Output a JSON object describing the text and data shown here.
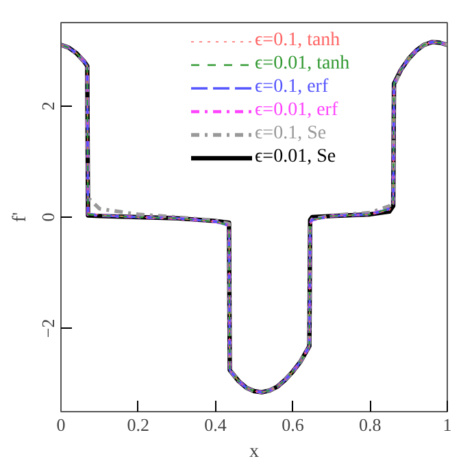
{
  "chart_data": {
    "type": "line",
    "xlabel": "x",
    "ylabel": "f'",
    "xlim": [
      0,
      1
    ],
    "ylim": [
      -3.5,
      3.5
    ],
    "xticks": [
      0,
      0.2,
      0.4,
      0.6,
      0.8,
      1
    ],
    "yticks": [
      -2,
      0,
      2
    ],
    "grid": false,
    "legend": "top",
    "marker": "none",
    "x": [
      0,
      0.02,
      0.04,
      0.06,
      0.068,
      0.07,
      0.1,
      0.2,
      0.3,
      0.4,
      0.435,
      0.437,
      0.44,
      0.46,
      0.48,
      0.5,
      0.52,
      0.54,
      0.56,
      0.58,
      0.6,
      0.62,
      0.643,
      0.645,
      0.65,
      0.7,
      0.8,
      0.85,
      0.86,
      0.862,
      0.88,
      0.9,
      0.92,
      0.94,
      0.96,
      0.98,
      1
    ],
    "series": [
      {
        "name": "ϵ=0.1, tanh",
        "color": "#ff6666",
        "line_style": "dotted",
        "values": [
          3.1,
          3.05,
          2.95,
          2.8,
          2.72,
          0.08,
          0.04,
          0.0,
          -0.03,
          -0.08,
          -0.15,
          -2.7,
          -2.78,
          -2.95,
          -3.07,
          -3.13,
          -3.15,
          -3.12,
          -3.05,
          -2.93,
          -2.78,
          -2.6,
          -2.32,
          -0.15,
          -0.06,
          0.02,
          0.05,
          0.12,
          0.22,
          2.4,
          2.65,
          2.85,
          3.0,
          3.1,
          3.15,
          3.14,
          3.1
        ]
      },
      {
        "name": "ϵ=0.01, tanh",
        "color": "#339933",
        "line_style": "dashed",
        "values": [
          3.1,
          3.05,
          2.95,
          2.8,
          2.72,
          0.05,
          0.03,
          0.0,
          -0.02,
          -0.08,
          -0.15,
          -2.75,
          -2.78,
          -2.95,
          -3.07,
          -3.13,
          -3.15,
          -3.12,
          -3.05,
          -2.93,
          -2.78,
          -2.6,
          -2.32,
          -0.12,
          -0.05,
          0.02,
          0.05,
          0.15,
          0.25,
          2.4,
          2.65,
          2.85,
          3.0,
          3.1,
          3.15,
          3.14,
          3.1
        ]
      },
      {
        "name": "ϵ=0.1, erf",
        "color": "#5555ff",
        "line_style": "longdash",
        "values": [
          3.1,
          3.05,
          2.95,
          2.8,
          2.72,
          0.06,
          0.03,
          0.0,
          -0.02,
          -0.08,
          -0.15,
          -2.75,
          -2.78,
          -2.95,
          -3.07,
          -3.13,
          -3.15,
          -3.12,
          -3.05,
          -2.93,
          -2.78,
          -2.6,
          -2.32,
          -0.12,
          -0.05,
          0.02,
          0.05,
          0.15,
          0.25,
          2.4,
          2.65,
          2.85,
          3.0,
          3.1,
          3.15,
          3.14,
          3.1
        ]
      },
      {
        "name": "ϵ=0.01, erf",
        "color": "#ff44ff",
        "line_style": "dashdot",
        "values": [
          3.1,
          3.05,
          2.95,
          2.8,
          2.72,
          0.05,
          0.03,
          0.0,
          -0.02,
          -0.08,
          -0.15,
          -2.75,
          -2.78,
          -2.95,
          -3.07,
          -3.13,
          -3.15,
          -3.12,
          -3.05,
          -2.93,
          -2.78,
          -2.6,
          -2.32,
          -0.12,
          -0.05,
          0.02,
          0.05,
          0.15,
          0.25,
          2.4,
          2.65,
          2.85,
          3.0,
          3.1,
          3.15,
          3.14,
          3.1
        ]
      },
      {
        "name": "ϵ=0.1, Se",
        "color": "#999999",
        "line_style": "dashdot",
        "values": [
          3.1,
          3.05,
          2.95,
          2.8,
          2.7,
          0.35,
          0.15,
          0.05,
          0.0,
          -0.06,
          -0.12,
          -2.7,
          -2.78,
          -2.95,
          -3.07,
          -3.13,
          -3.15,
          -3.12,
          -3.05,
          -2.93,
          -2.78,
          -2.6,
          -2.32,
          -0.1,
          -0.04,
          0.03,
          0.08,
          0.2,
          0.3,
          2.35,
          2.65,
          2.85,
          3.0,
          3.1,
          3.15,
          3.14,
          3.1
        ]
      },
      {
        "name": "ϵ=0.01, Se",
        "color": "#000000",
        "line_style": "solid",
        "values": [
          3.1,
          3.05,
          2.95,
          2.8,
          2.72,
          0.03,
          0.02,
          0.0,
          -0.02,
          -0.07,
          -0.1,
          -2.75,
          -2.78,
          -2.95,
          -3.07,
          -3.13,
          -3.15,
          -3.12,
          -3.05,
          -2.93,
          -2.78,
          -2.6,
          -2.32,
          -0.05,
          0.0,
          0.02,
          0.05,
          0.1,
          0.2,
          2.4,
          2.65,
          2.85,
          3.0,
          3.1,
          3.15,
          3.14,
          3.1
        ]
      }
    ]
  }
}
